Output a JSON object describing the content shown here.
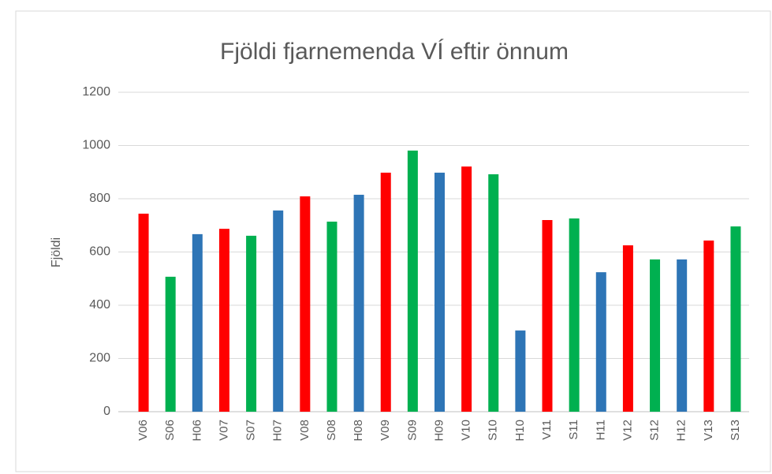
{
  "chart_data": {
    "type": "bar",
    "title": "Fjöldi fjarnemenda VÍ eftir önnum",
    "y_label": "Fjöldi",
    "categories": [
      "V06",
      "S06",
      "H06",
      "V07",
      "S07",
      "H07",
      "V08",
      "S08",
      "H08",
      "V09",
      "S09",
      "H09",
      "V10",
      "S10",
      "H10",
      "V11",
      "S11",
      "H11",
      "V12",
      "S12",
      "H12",
      "V13",
      "S13"
    ],
    "values": [
      744,
      507,
      667,
      687,
      661,
      756,
      809,
      714,
      815,
      898,
      981,
      898,
      921,
      892,
      305,
      720,
      726,
      524,
      625,
      572,
      572,
      643,
      696
    ],
    "colors": [
      "#ff0000",
      "#00b050",
      "#2e75b6",
      "#ff0000",
      "#00b050",
      "#2e75b6",
      "#ff0000",
      "#00b050",
      "#2e75b6",
      "#ff0000",
      "#00b050",
      "#2e75b6",
      "#ff0000",
      "#00b050",
      "#2e75b6",
      "#ff0000",
      "#00b050",
      "#2e75b6",
      "#ff0000",
      "#00b050",
      "#2e75b6",
      "#ff0000",
      "#00b050"
    ],
    "ylim": [
      0,
      1200
    ],
    "yticks": [
      0,
      200,
      400,
      600,
      800,
      1000,
      1200
    ],
    "grid": true
  }
}
